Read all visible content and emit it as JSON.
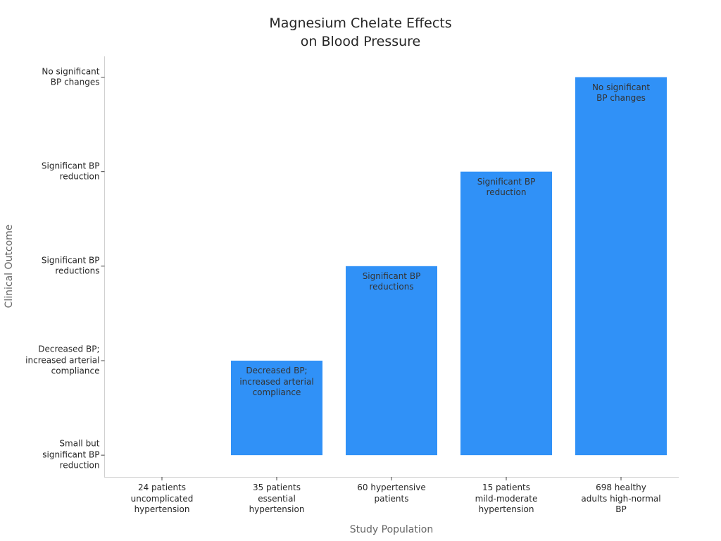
{
  "chart_data": {
    "type": "bar",
    "title": "Magnesium Chelate Effects\non Blood Pressure",
    "x_label": "Study Population",
    "y_label": "Clinical Outcome",
    "categories": [
      "24 patients\nuncomplicated\nhypertension",
      "35 patients\nessential\nhypertension",
      "60 hypertensive\npatients",
      "15 patients\nmild-moderate\nhypertension",
      "698 healthy\nadults high-normal\nBP"
    ],
    "values": [
      0,
      1,
      2,
      3,
      4
    ],
    "value_labels": [
      null,
      "Decreased BP;\nincreased arterial\ncompliance",
      "Significant BP\nreductions",
      "Significant BP\nreduction",
      "No significant\nBP changes"
    ],
    "color": "#3091f7",
    "ylim": [
      -0.23,
      4.22
    ],
    "yticks": [
      {
        "value": 0,
        "label": "Small but\nsignificant BP\nreduction"
      },
      {
        "value": 1,
        "label": "Decreased BP;\nincreased arterial\ncompliance"
      },
      {
        "value": 2,
        "label": "Significant BP\nreductions"
      },
      {
        "value": 3,
        "label": "Significant BP\nreduction"
      },
      {
        "value": 4,
        "label": "No significant\nBP changes"
      }
    ],
    "grid": false
  }
}
